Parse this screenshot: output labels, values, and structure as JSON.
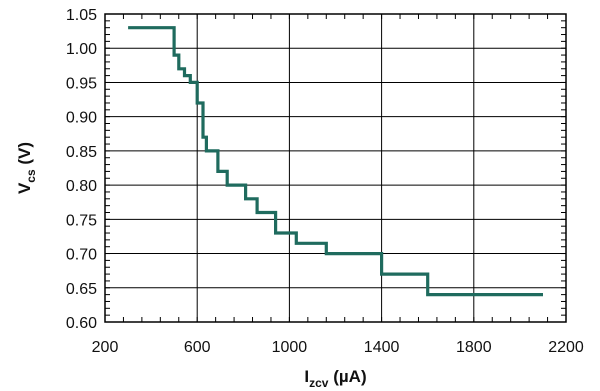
{
  "chart_data": {
    "type": "line",
    "xlabel": {
      "main": "I",
      "sub": "zcv",
      "unit": " (µA)"
    },
    "ylabel": {
      "main": "V",
      "sub": "cs",
      "unit": " (V)"
    },
    "xlim": [
      200,
      2200
    ],
    "ylim": [
      0.6,
      1.05
    ],
    "xticks": [
      "200",
      "600",
      "1000",
      "1400",
      "1800",
      "2200"
    ],
    "yticks": [
      "0.60",
      "0.65",
      "0.70",
      "0.75",
      "0.80",
      "0.85",
      "0.90",
      "0.95",
      "1.00",
      "1.05"
    ],
    "grid": true,
    "line_color": "#1f6b5e",
    "series": [
      {
        "x": [
          300,
          500,
          500,
          520,
          520,
          545,
          545,
          570,
          570,
          600,
          600,
          625,
          625,
          640,
          640,
          690,
          690,
          730,
          730,
          810,
          810,
          860,
          860,
          940,
          940,
          1030,
          1030,
          1160,
          1160,
          1400,
          1400,
          1600,
          1600,
          1800,
          1800,
          2100
        ],
        "y": [
          1.03,
          1.03,
          0.99,
          0.99,
          0.97,
          0.97,
          0.96,
          0.96,
          0.95,
          0.95,
          0.92,
          0.92,
          0.87,
          0.87,
          0.85,
          0.85,
          0.82,
          0.82,
          0.8,
          0.8,
          0.78,
          0.78,
          0.76,
          0.76,
          0.73,
          0.73,
          0.715,
          0.715,
          0.7,
          0.7,
          0.67,
          0.67,
          0.64,
          0.64,
          0.64,
          0.64
        ]
      }
    ]
  }
}
